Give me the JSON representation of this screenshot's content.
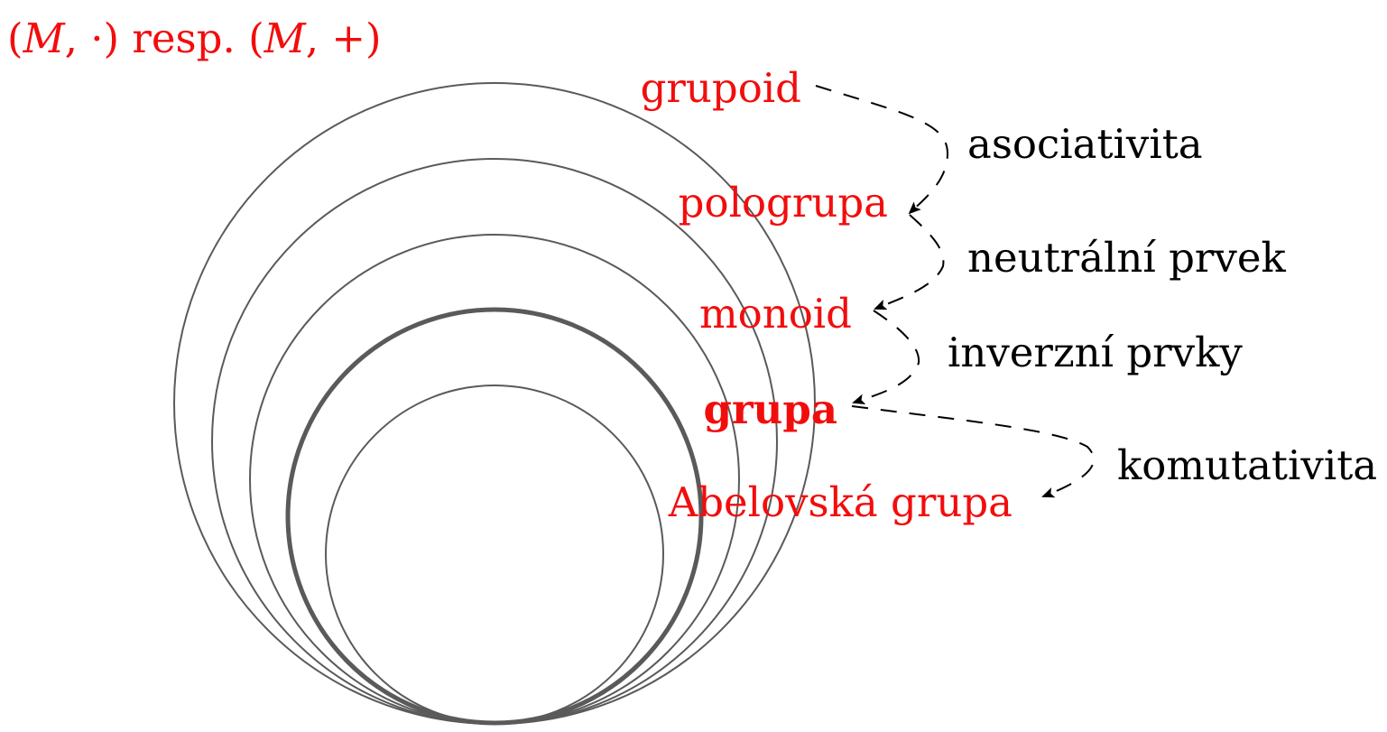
{
  "header": {
    "expr_open1": "(",
    "expr_M1": "M",
    "expr_op1": ", ·)",
    "expr_resp": " resp. ",
    "expr_open2": "(",
    "expr_M2": "M",
    "expr_op2": ", +)"
  },
  "structures": [
    {
      "label": "grupoid"
    },
    {
      "label": "pologrupa"
    },
    {
      "label": "monoid"
    },
    {
      "label": "grupa"
    },
    {
      "label": "Abelovská grupa"
    }
  ],
  "properties": [
    {
      "label": "asociativita"
    },
    {
      "label": "neutrální prvek"
    },
    {
      "label": "inverzní prvky"
    },
    {
      "label": "komutativita"
    }
  ],
  "colors": {
    "structure_label": "#f20d0d",
    "property_label": "#000000",
    "circle_stroke": "#5a5a5a"
  }
}
